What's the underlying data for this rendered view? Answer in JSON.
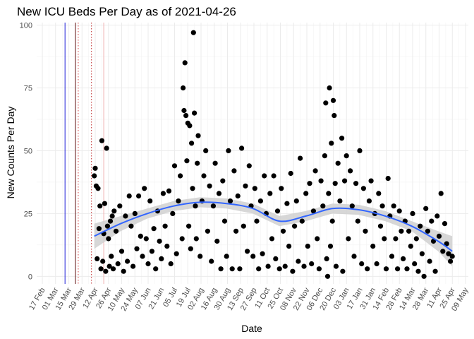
{
  "chart_data": {
    "type": "scatter",
    "title": "New ICU Beds Per Day as of 2021-04-26",
    "xlabel": "Date",
    "ylabel": "New Counts Per Day",
    "x_ticks": [
      "17 Feb",
      "01 Mar",
      "15 Mar",
      "29 Mar",
      "12 Apr",
      "26 Apr",
      "10 May",
      "24 May",
      "07 Jun",
      "21 Jun",
      "05 Jul",
      "19 Jul",
      "02 Aug",
      "16 Aug",
      "30 Aug",
      "13 Sep",
      "27 Sep",
      "11 Oct",
      "25 Oct",
      "08 Nov",
      "22 Nov",
      "06 Dec",
      "20 Dec",
      "03 Jan",
      "17 Jan",
      "31 Jan",
      "14 Feb",
      "28 Feb",
      "14 Mar",
      "28 Mar",
      "11 Apr",
      "25 Apr",
      "09 May"
    ],
    "x_range": [
      "2020-02-11",
      "2021-05-13"
    ],
    "y_ticks": [
      0,
      25,
      50,
      75,
      100
    ],
    "ylim": [
      -3,
      101
    ],
    "grid": true,
    "vlines": [
      {
        "date": "2020-03-12",
        "color": "#1f1fd6",
        "style": "solid"
      },
      {
        "date": "2020-03-23",
        "color": "#5c0a0a",
        "style": "solid"
      },
      {
        "date": "2020-03-26",
        "color": "#d94040",
        "style": "dotted"
      },
      {
        "date": "2020-04-09",
        "color": "#c03030",
        "style": "dotted"
      },
      {
        "date": "2020-04-22",
        "color": "#f0b0b0",
        "style": "solid"
      }
    ],
    "smooth_color": "#3366ff",
    "band_color": "#d0d0d0",
    "point_color": "#000000",
    "points": [
      {
        "x": "2020-04-12",
        "y": 40
      },
      {
        "x": "2020-04-13",
        "y": 43
      },
      {
        "x": "2020-04-14",
        "y": 36
      },
      {
        "x": "2020-04-15",
        "y": 7
      },
      {
        "x": "2020-04-16",
        "y": 35
      },
      {
        "x": "2020-04-17",
        "y": 19
      },
      {
        "x": "2020-04-18",
        "y": 28
      },
      {
        "x": "2020-04-19",
        "y": 3
      },
      {
        "x": "2020-04-20",
        "y": 54
      },
      {
        "x": "2020-04-21",
        "y": 6
      },
      {
        "x": "2020-04-22",
        "y": 17
      },
      {
        "x": "2020-04-23",
        "y": 29
      },
      {
        "x": "2020-04-24",
        "y": 2
      },
      {
        "x": "2020-04-25",
        "y": 51
      },
      {
        "x": "2020-04-26",
        "y": 20
      },
      {
        "x": "2020-04-27",
        "y": 15
      },
      {
        "x": "2020-04-28",
        "y": 4
      },
      {
        "x": "2020-04-29",
        "y": 22
      },
      {
        "x": "2020-04-30",
        "y": 8
      },
      {
        "x": "2020-05-01",
        "y": 24
      },
      {
        "x": "2020-05-02",
        "y": 3
      },
      {
        "x": "2020-05-03",
        "y": 26
      },
      {
        "x": "2020-05-05",
        "y": 18
      },
      {
        "x": "2020-05-07",
        "y": 5
      },
      {
        "x": "2020-05-09",
        "y": 28
      },
      {
        "x": "2020-05-11",
        "y": 10
      },
      {
        "x": "2020-05-13",
        "y": 2
      },
      {
        "x": "2020-05-15",
        "y": 24
      },
      {
        "x": "2020-05-17",
        "y": 6
      },
      {
        "x": "2020-05-19",
        "y": 32
      },
      {
        "x": "2020-05-21",
        "y": 20
      },
      {
        "x": "2020-05-23",
        "y": 4
      },
      {
        "x": "2020-05-25",
        "y": 25
      },
      {
        "x": "2020-05-27",
        "y": 11
      },
      {
        "x": "2020-05-29",
        "y": 32
      },
      {
        "x": "2020-05-31",
        "y": 16
      },
      {
        "x": "2020-06-02",
        "y": 8
      },
      {
        "x": "2020-06-04",
        "y": 35
      },
      {
        "x": "2020-06-06",
        "y": 15
      },
      {
        "x": "2020-06-08",
        "y": 5
      },
      {
        "x": "2020-06-10",
        "y": 30
      },
      {
        "x": "2020-06-12",
        "y": 10
      },
      {
        "x": "2020-06-14",
        "y": 19
      },
      {
        "x": "2020-06-16",
        "y": 3
      },
      {
        "x": "2020-06-18",
        "y": 26
      },
      {
        "x": "2020-06-20",
        "y": 14
      },
      {
        "x": "2020-06-22",
        "y": 7
      },
      {
        "x": "2020-06-24",
        "y": 33
      },
      {
        "x": "2020-06-26",
        "y": 20
      },
      {
        "x": "2020-06-28",
        "y": 12
      },
      {
        "x": "2020-06-30",
        "y": 34
      },
      {
        "x": "2020-07-02",
        "y": 5
      },
      {
        "x": "2020-07-04",
        "y": 25
      },
      {
        "x": "2020-07-06",
        "y": 44
      },
      {
        "x": "2020-07-08",
        "y": 9
      },
      {
        "x": "2020-07-10",
        "y": 30
      },
      {
        "x": "2020-07-12",
        "y": 40
      },
      {
        "x": "2020-07-14",
        "y": 15
      },
      {
        "x": "2020-07-15",
        "y": 75
      },
      {
        "x": "2020-07-16",
        "y": 66
      },
      {
        "x": "2020-07-17",
        "y": 85
      },
      {
        "x": "2020-07-18",
        "y": 64
      },
      {
        "x": "2020-07-19",
        "y": 46
      },
      {
        "x": "2020-07-20",
        "y": 61
      },
      {
        "x": "2020-07-21",
        "y": 20
      },
      {
        "x": "2020-07-22",
        "y": 60
      },
      {
        "x": "2020-07-23",
        "y": 11
      },
      {
        "x": "2020-07-24",
        "y": 53
      },
      {
        "x": "2020-07-25",
        "y": 35
      },
      {
        "x": "2020-07-26",
        "y": 97
      },
      {
        "x": "2020-07-27",
        "y": 65
      },
      {
        "x": "2020-07-28",
        "y": 28
      },
      {
        "x": "2020-07-29",
        "y": 15
      },
      {
        "x": "2020-07-30",
        "y": 45
      },
      {
        "x": "2020-07-31",
        "y": 56
      },
      {
        "x": "2020-08-02",
        "y": 8
      },
      {
        "x": "2020-08-04",
        "y": 30
      },
      {
        "x": "2020-08-06",
        "y": 40
      },
      {
        "x": "2020-08-08",
        "y": 50
      },
      {
        "x": "2020-08-10",
        "y": 18
      },
      {
        "x": "2020-08-12",
        "y": 36
      },
      {
        "x": "2020-08-14",
        "y": 6
      },
      {
        "x": "2020-08-16",
        "y": 28
      },
      {
        "x": "2020-08-18",
        "y": 45
      },
      {
        "x": "2020-08-20",
        "y": 14
      },
      {
        "x": "2020-08-22",
        "y": 33
      },
      {
        "x": "2020-08-24",
        "y": 3
      },
      {
        "x": "2020-08-26",
        "y": 38
      },
      {
        "x": "2020-08-28",
        "y": 22
      },
      {
        "x": "2020-08-30",
        "y": 8
      },
      {
        "x": "2020-09-01",
        "y": 50
      },
      {
        "x": "2020-09-03",
        "y": 30
      },
      {
        "x": "2020-09-05",
        "y": 3
      },
      {
        "x": "2020-09-07",
        "y": 42
      },
      {
        "x": "2020-09-09",
        "y": 18
      },
      {
        "x": "2020-09-11",
        "y": 32
      },
      {
        "x": "2020-09-13",
        "y": 3
      },
      {
        "x": "2020-09-15",
        "y": 51
      },
      {
        "x": "2020-09-17",
        "y": 20
      },
      {
        "x": "2020-09-19",
        "y": 36
      },
      {
        "x": "2020-09-21",
        "y": 10
      },
      {
        "x": "2020-09-23",
        "y": 44
      },
      {
        "x": "2020-09-25",
        "y": 28
      },
      {
        "x": "2020-09-27",
        "y": 8
      },
      {
        "x": "2020-09-29",
        "y": 35
      },
      {
        "x": "2020-10-01",
        "y": 22
      },
      {
        "x": "2020-10-03",
        "y": 3
      },
      {
        "x": "2020-10-05",
        "y": 30
      },
      {
        "x": "2020-10-07",
        "y": 9
      },
      {
        "x": "2020-10-09",
        "y": 40
      },
      {
        "x": "2020-10-11",
        "y": 25
      },
      {
        "x": "2020-10-13",
        "y": 4
      },
      {
        "x": "2020-10-15",
        "y": 33
      },
      {
        "x": "2020-10-17",
        "y": 15
      },
      {
        "x": "2020-10-19",
        "y": 40
      },
      {
        "x": "2020-10-21",
        "y": 7
      },
      {
        "x": "2020-10-23",
        "y": 26
      },
      {
        "x": "2020-10-25",
        "y": 3
      },
      {
        "x": "2020-10-27",
        "y": 35
      },
      {
        "x": "2020-10-29",
        "y": 18
      },
      {
        "x": "2020-10-31",
        "y": 4
      },
      {
        "x": "2020-11-02",
        "y": 29
      },
      {
        "x": "2020-11-04",
        "y": 12
      },
      {
        "x": "2020-11-06",
        "y": 41
      },
      {
        "x": "2020-11-08",
        "y": 2
      },
      {
        "x": "2020-11-10",
        "y": 20
      },
      {
        "x": "2020-11-12",
        "y": 30
      },
      {
        "x": "2020-11-14",
        "y": 6
      },
      {
        "x": "2020-11-16",
        "y": 47
      },
      {
        "x": "2020-11-18",
        "y": 22
      },
      {
        "x": "2020-11-20",
        "y": 4
      },
      {
        "x": "2020-11-22",
        "y": 33
      },
      {
        "x": "2020-11-24",
        "y": 12
      },
      {
        "x": "2020-11-26",
        "y": 37
      },
      {
        "x": "2020-11-28",
        "y": 5
      },
      {
        "x": "2020-11-30",
        "y": 26
      },
      {
        "x": "2020-12-02",
        "y": 42
      },
      {
        "x": "2020-12-04",
        "y": 15
      },
      {
        "x": "2020-12-06",
        "y": 3
      },
      {
        "x": "2020-12-08",
        "y": 38
      },
      {
        "x": "2020-12-10",
        "y": 28
      },
      {
        "x": "2020-12-12",
        "y": 48
      },
      {
        "x": "2020-12-13",
        "y": 69
      },
      {
        "x": "2020-12-14",
        "y": 7
      },
      {
        "x": "2020-12-15",
        "y": 0
      },
      {
        "x": "2020-12-16",
        "y": 33
      },
      {
        "x": "2020-12-17",
        "y": 75
      },
      {
        "x": "2020-12-18",
        "y": 12
      },
      {
        "x": "2020-12-19",
        "y": 53
      },
      {
        "x": "2020-12-20",
        "y": 22
      },
      {
        "x": "2020-12-21",
        "y": 70
      },
      {
        "x": "2020-12-22",
        "y": 64
      },
      {
        "x": "2020-12-23",
        "y": 37
      },
      {
        "x": "2020-12-24",
        "y": 4
      },
      {
        "x": "2020-12-26",
        "y": 45
      },
      {
        "x": "2020-12-28",
        "y": 30
      },
      {
        "x": "2020-12-30",
        "y": 55
      },
      {
        "x": "2020-12-31",
        "y": 2
      },
      {
        "x": "2021-01-02",
        "y": 38
      },
      {
        "x": "2021-01-04",
        "y": 48
      },
      {
        "x": "2021-01-06",
        "y": 15
      },
      {
        "x": "2021-01-08",
        "y": 42
      },
      {
        "x": "2021-01-10",
        "y": 28
      },
      {
        "x": "2021-01-12",
        "y": 8
      },
      {
        "x": "2021-01-14",
        "y": 37
      },
      {
        "x": "2021-01-16",
        "y": 22
      },
      {
        "x": "2021-01-18",
        "y": 50
      },
      {
        "x": "2021-01-20",
        "y": 5
      },
      {
        "x": "2021-01-22",
        "y": 35
      },
      {
        "x": "2021-01-24",
        "y": 18
      },
      {
        "x": "2021-01-26",
        "y": 3
      },
      {
        "x": "2021-01-28",
        "y": 30
      },
      {
        "x": "2021-01-30",
        "y": 38
      },
      {
        "x": "2021-02-01",
        "y": 12
      },
      {
        "x": "2021-02-03",
        "y": 25
      },
      {
        "x": "2021-02-05",
        "y": 5
      },
      {
        "x": "2021-02-07",
        "y": 33
      },
      {
        "x": "2021-02-09",
        "y": 20
      },
      {
        "x": "2021-02-11",
        "y": 28
      },
      {
        "x": "2021-02-13",
        "y": 15
      },
      {
        "x": "2021-02-15",
        "y": 3
      },
      {
        "x": "2021-02-17",
        "y": 39
      },
      {
        "x": "2021-02-19",
        "y": 24
      },
      {
        "x": "2021-02-21",
        "y": 8
      },
      {
        "x": "2021-02-23",
        "y": 28
      },
      {
        "x": "2021-02-25",
        "y": 15
      },
      {
        "x": "2021-02-27",
        "y": 3
      },
      {
        "x": "2021-03-01",
        "y": 26
      },
      {
        "x": "2021-03-03",
        "y": 18
      },
      {
        "x": "2021-03-05",
        "y": 7
      },
      {
        "x": "2021-03-07",
        "y": 22
      },
      {
        "x": "2021-03-09",
        "y": 3
      },
      {
        "x": "2021-03-11",
        "y": 18
      },
      {
        "x": "2021-03-13",
        "y": 12
      },
      {
        "x": "2021-03-15",
        "y": 25
      },
      {
        "x": "2021-03-17",
        "y": 5
      },
      {
        "x": "2021-03-19",
        "y": 15
      },
      {
        "x": "2021-03-21",
        "y": 2
      },
      {
        "x": "2021-03-23",
        "y": 20
      },
      {
        "x": "2021-03-25",
        "y": 9
      },
      {
        "x": "2021-03-27",
        "y": 0
      },
      {
        "x": "2021-03-29",
        "y": 27
      },
      {
        "x": "2021-03-31",
        "y": 18
      },
      {
        "x": "2021-04-02",
        "y": 6
      },
      {
        "x": "2021-04-04",
        "y": 22
      },
      {
        "x": "2021-04-06",
        "y": 14
      },
      {
        "x": "2021-04-08",
        "y": 2
      },
      {
        "x": "2021-04-10",
        "y": 24
      },
      {
        "x": "2021-04-12",
        "y": 16
      },
      {
        "x": "2021-04-14",
        "y": 33
      },
      {
        "x": "2021-04-16",
        "y": 10
      },
      {
        "x": "2021-04-18",
        "y": 21
      },
      {
        "x": "2021-04-20",
        "y": 13
      },
      {
        "x": "2021-04-22",
        "y": 9
      },
      {
        "x": "2021-04-24",
        "y": 6
      },
      {
        "x": "2021-04-26",
        "y": 8
      }
    ],
    "smooth": [
      {
        "x": "2020-04-12",
        "y": 16,
        "lo": 11,
        "hi": 21
      },
      {
        "x": "2020-05-10",
        "y": 21,
        "lo": 18,
        "hi": 24
      },
      {
        "x": "2020-06-07",
        "y": 25,
        "lo": 23,
        "hi": 27
      },
      {
        "x": "2020-07-05",
        "y": 28,
        "lo": 26,
        "hi": 30
      },
      {
        "x": "2020-08-02",
        "y": 29.5,
        "lo": 27.5,
        "hi": 31.5
      },
      {
        "x": "2020-08-30",
        "y": 29,
        "lo": 27,
        "hi": 31
      },
      {
        "x": "2020-09-27",
        "y": 27,
        "lo": 25,
        "hi": 29
      },
      {
        "x": "2020-10-25",
        "y": 22,
        "lo": 20,
        "hi": 24
      },
      {
        "x": "2020-11-22",
        "y": 24,
        "lo": 22,
        "hi": 26
      },
      {
        "x": "2020-12-20",
        "y": 27,
        "lo": 25,
        "hi": 29
      },
      {
        "x": "2021-01-17",
        "y": 26.5,
        "lo": 24.5,
        "hi": 28.5
      },
      {
        "x": "2021-02-14",
        "y": 24,
        "lo": 22,
        "hi": 26
      },
      {
        "x": "2021-03-14",
        "y": 20,
        "lo": 18,
        "hi": 22
      },
      {
        "x": "2021-04-11",
        "y": 14,
        "lo": 10,
        "hi": 18
      },
      {
        "x": "2021-04-26",
        "y": 10,
        "lo": 4,
        "hi": 16
      }
    ]
  }
}
